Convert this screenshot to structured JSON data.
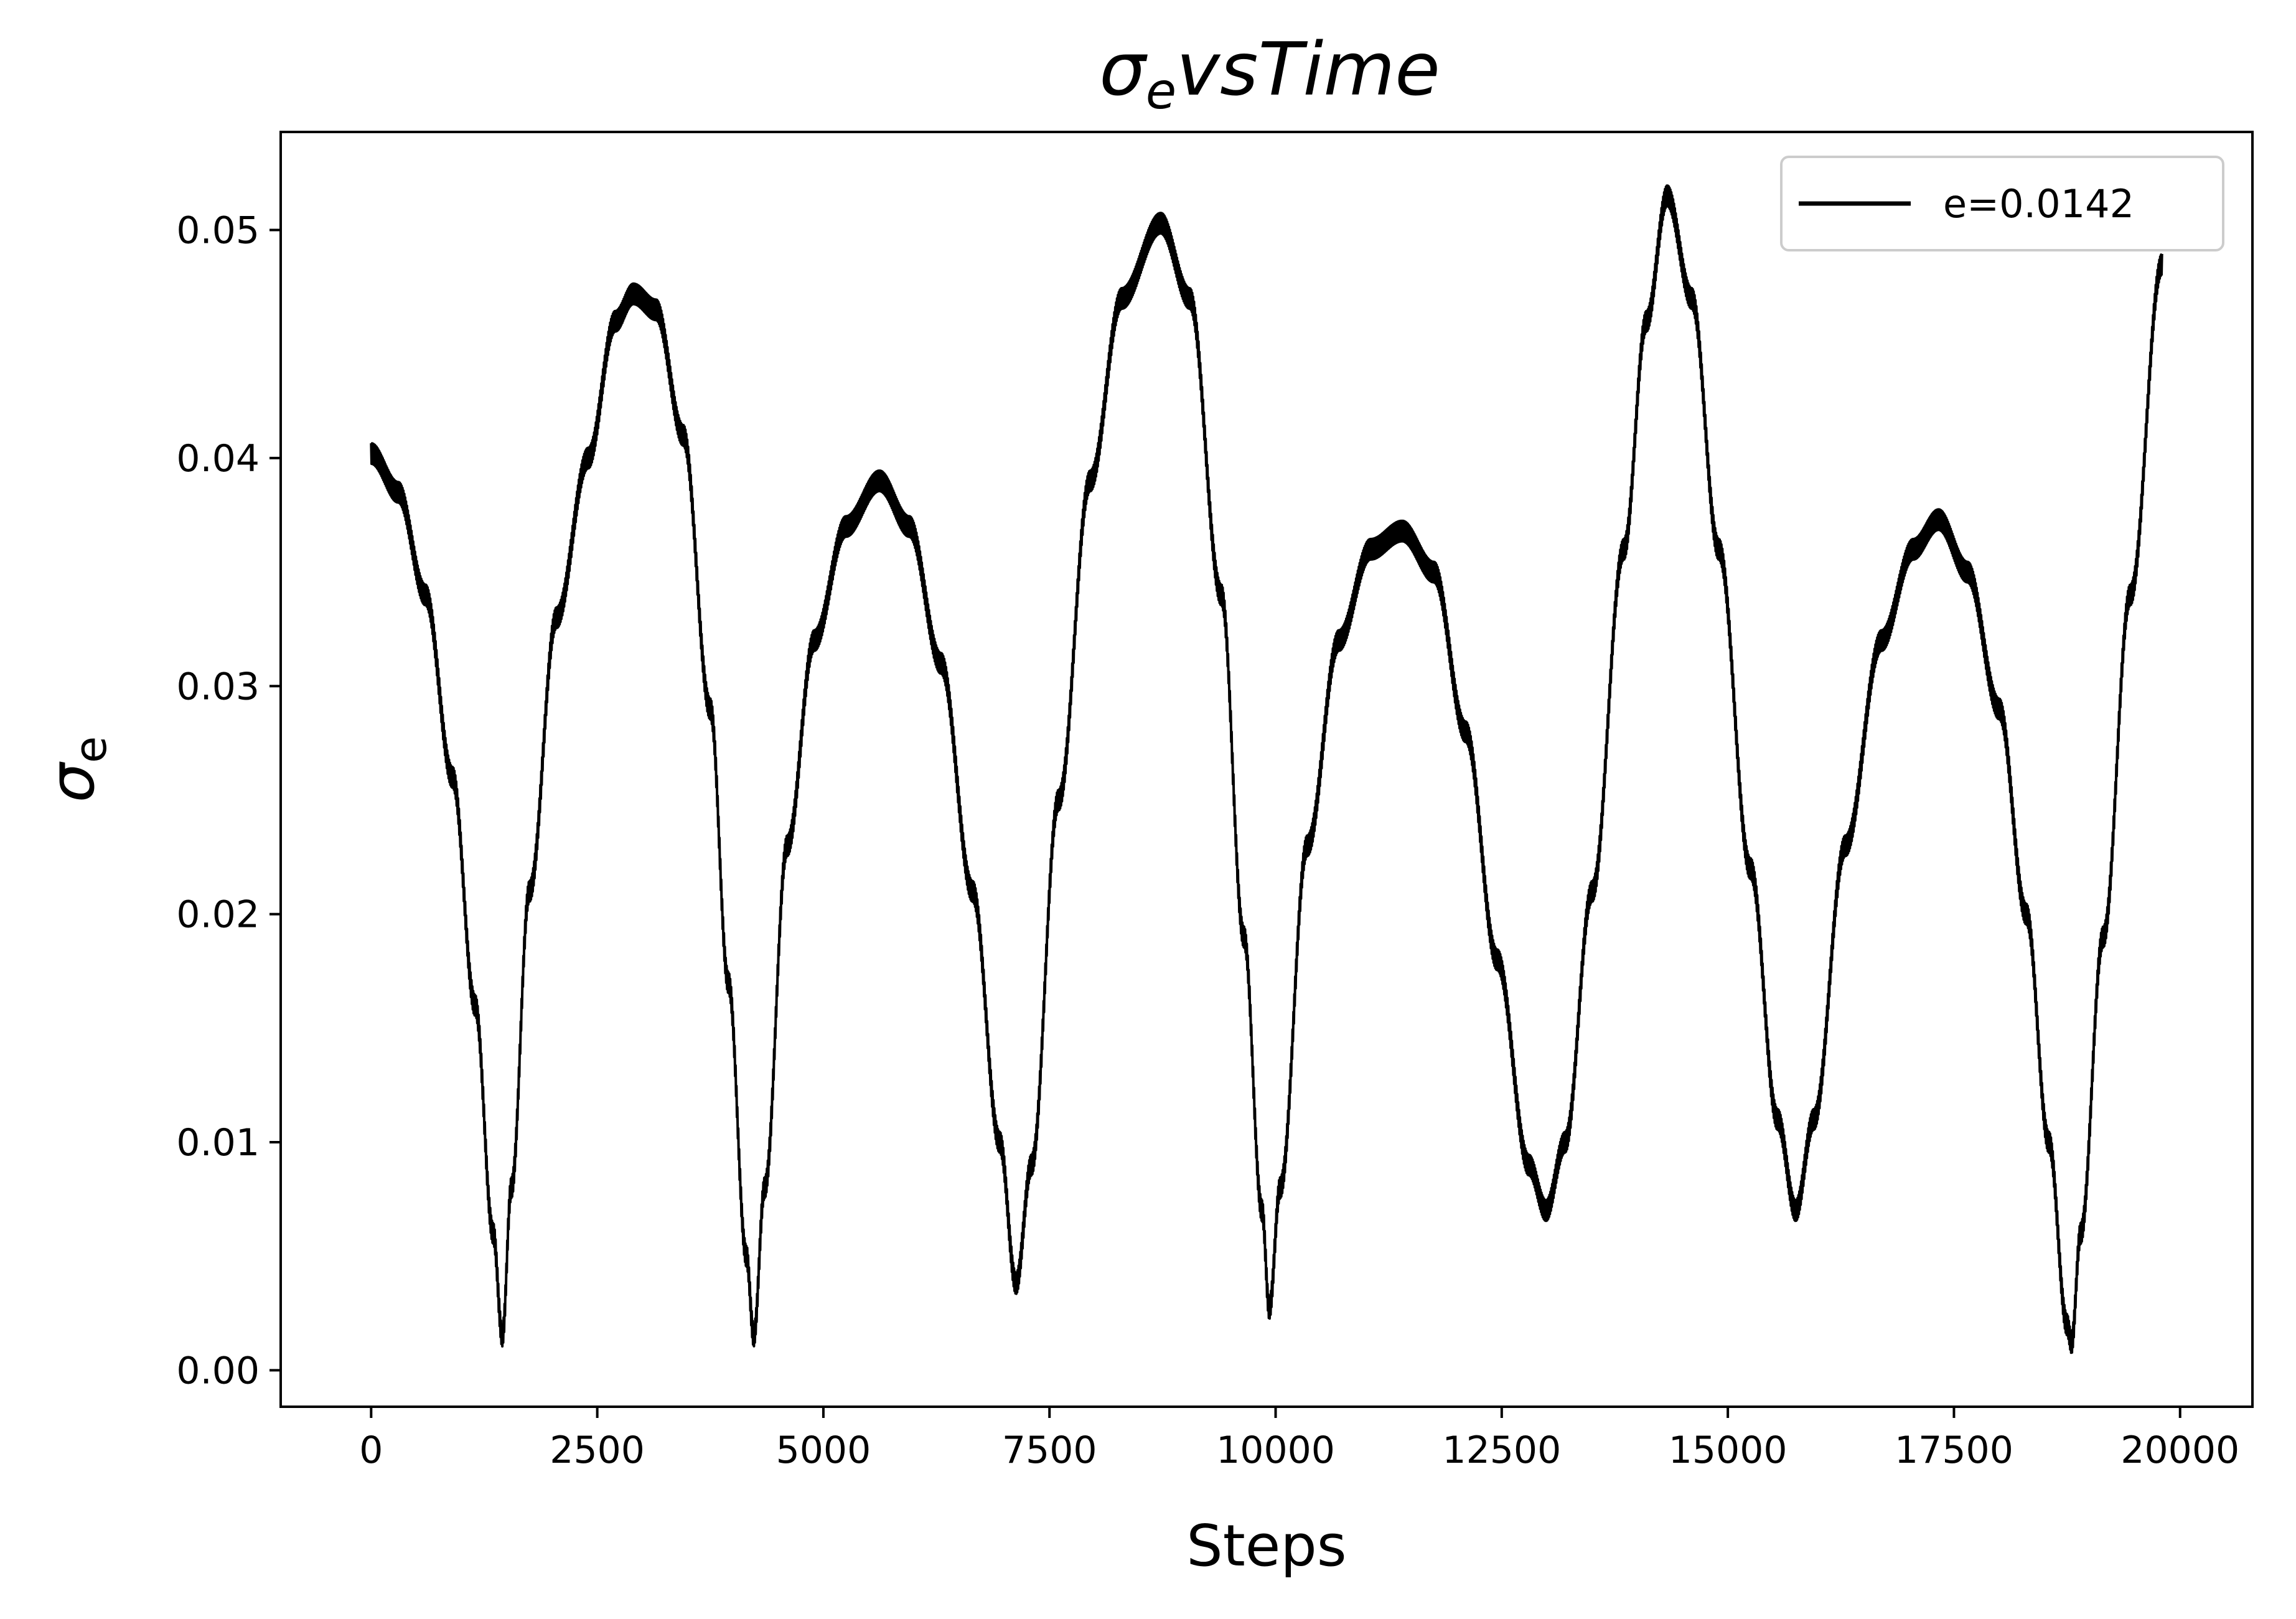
{
  "chart_data": {
    "type": "line",
    "title": {
      "main": "σ",
      "sub": "e",
      "rest": "vsTime"
    },
    "xlabel": "Steps",
    "ylabel": {
      "main": "σ",
      "sub": "e"
    },
    "xlim": [
      -1000,
      20800
    ],
    "ylim": [
      -0.0016,
      0.0543
    ],
    "xticks": [
      0,
      2500,
      5000,
      7500,
      10000,
      12500,
      15000,
      17500,
      20000
    ],
    "xtick_labels": [
      "0",
      "2500",
      "5000",
      "7500",
      "10000",
      "12500",
      "15000",
      "17500",
      "20000"
    ],
    "yticks": [
      0.0,
      0.01,
      0.02,
      0.03,
      0.04,
      0.05
    ],
    "ytick_labels": [
      "0.00",
      "0.01",
      "0.02",
      "0.03",
      "0.04",
      "0.05"
    ],
    "grid": false,
    "legend": {
      "position": "top-right",
      "entries": [
        "e=0.0142"
      ]
    },
    "series": [
      {
        "name": "e=0.0142",
        "color": "#000000",
        "oscillation_band": 0.0009,
        "points": [
          [
            0,
            0.0402
          ],
          [
            300,
            0.0385
          ],
          [
            600,
            0.034
          ],
          [
            900,
            0.026
          ],
          [
            1150,
            0.016
          ],
          [
            1350,
            0.006
          ],
          [
            1450,
            0.0015
          ],
          [
            1550,
            0.008
          ],
          [
            1750,
            0.021
          ],
          [
            2050,
            0.033
          ],
          [
            2400,
            0.04
          ],
          [
            2700,
            0.046
          ],
          [
            2900,
            0.0472
          ],
          [
            3150,
            0.0465
          ],
          [
            3450,
            0.041
          ],
          [
            3750,
            0.029
          ],
          [
            3950,
            0.017
          ],
          [
            4150,
            0.005
          ],
          [
            4230,
            0.0015
          ],
          [
            4350,
            0.008
          ],
          [
            4600,
            0.023
          ],
          [
            4900,
            0.032
          ],
          [
            5250,
            0.037
          ],
          [
            5620,
            0.039
          ],
          [
            5950,
            0.037
          ],
          [
            6300,
            0.031
          ],
          [
            6650,
            0.021
          ],
          [
            6950,
            0.01
          ],
          [
            7130,
            0.0038
          ],
          [
            7300,
            0.009
          ],
          [
            7600,
            0.025
          ],
          [
            7950,
            0.039
          ],
          [
            8300,
            0.047
          ],
          [
            8730,
            0.0503
          ],
          [
            9050,
            0.047
          ],
          [
            9400,
            0.034
          ],
          [
            9650,
            0.019
          ],
          [
            9850,
            0.007
          ],
          [
            9930,
            0.0027
          ],
          [
            10050,
            0.008
          ],
          [
            10350,
            0.023
          ],
          [
            10700,
            0.032
          ],
          [
            11050,
            0.036
          ],
          [
            11400,
            0.0368
          ],
          [
            11750,
            0.035
          ],
          [
            12100,
            0.028
          ],
          [
            12450,
            0.018
          ],
          [
            12800,
            0.009
          ],
          [
            12990,
            0.007
          ],
          [
            13200,
            0.01
          ],
          [
            13500,
            0.021
          ],
          [
            13850,
            0.036
          ],
          [
            14100,
            0.046
          ],
          [
            14330,
            0.0515
          ],
          [
            14600,
            0.047
          ],
          [
            14900,
            0.036
          ],
          [
            15250,
            0.022
          ],
          [
            15550,
            0.011
          ],
          [
            15750,
            0.007
          ],
          [
            15950,
            0.011
          ],
          [
            16300,
            0.023
          ],
          [
            16700,
            0.032
          ],
          [
            17050,
            0.036
          ],
          [
            17330,
            0.0373
          ],
          [
            17650,
            0.035
          ],
          [
            18000,
            0.029
          ],
          [
            18300,
            0.02
          ],
          [
            18550,
            0.01
          ],
          [
            18750,
            0.002
          ],
          [
            18800,
            0.0012
          ],
          [
            18900,
            0.006
          ],
          [
            19150,
            0.019
          ],
          [
            19450,
            0.034
          ],
          [
            19800,
            0.0485
          ]
        ]
      }
    ]
  }
}
